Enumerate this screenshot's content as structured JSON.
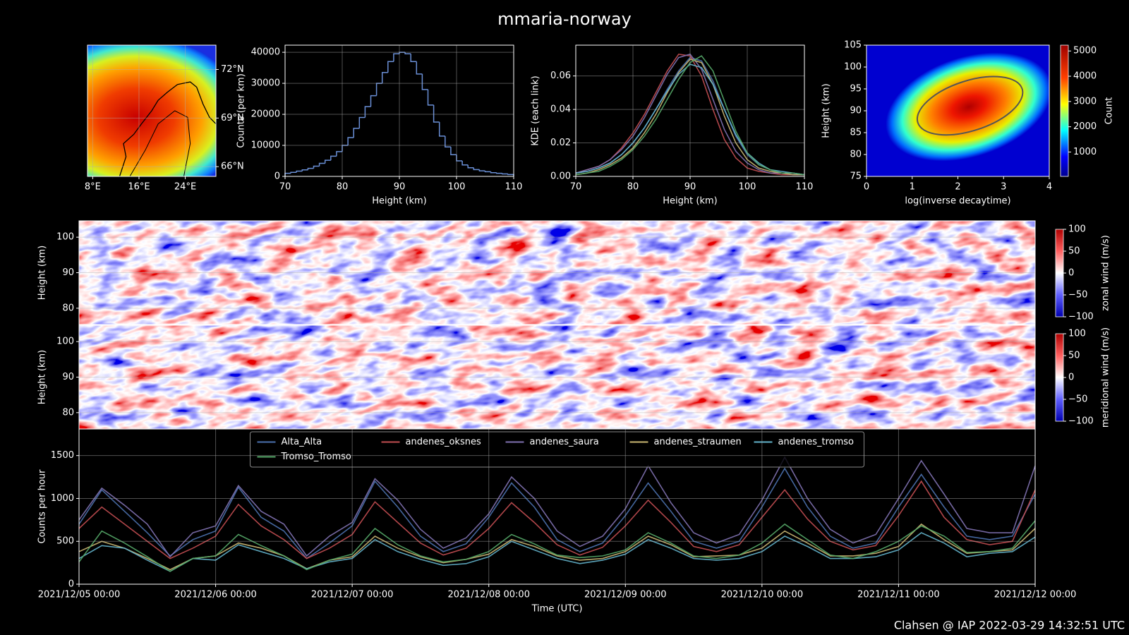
{
  "title": "mmaria-norway",
  "footer": "Clahsen @ IAP 2022-03-29 14:32:51 UTC",
  "chart_data": [
    {
      "type": "map",
      "xlim": [
        7.1,
        29.3
      ],
      "ylim": [
        65.4,
        73.5
      ],
      "xticks": [
        {
          "value": 8,
          "label": "8°E"
        },
        {
          "value": 16,
          "label": "16°E"
        },
        {
          "value": 24,
          "label": "24°E"
        }
      ],
      "yticks": [
        {
          "value": 66,
          "label": "66°N"
        },
        {
          "value": 69,
          "label": "69°N"
        },
        {
          "value": 72,
          "label": "72°N"
        }
      ],
      "grid": true
    },
    {
      "type": "histogram",
      "xlabel": "Height (km)",
      "ylabel": "Counts (per km)",
      "color": "#6a8fd6",
      "bins": [
        70,
        71,
        72,
        73,
        74,
        75,
        76,
        77,
        78,
        79,
        80,
        81,
        82,
        83,
        84,
        85,
        86,
        87,
        88,
        89,
        90,
        91,
        92,
        93,
        94,
        95,
        96,
        97,
        98,
        99,
        100,
        101,
        102,
        103,
        104,
        105,
        106,
        107,
        108,
        109,
        110
      ],
      "values": [
        1000,
        1300,
        1700,
        2100,
        2600,
        3300,
        4200,
        5200,
        6500,
        8000,
        10000,
        12500,
        15500,
        19000,
        22500,
        26000,
        30000,
        33500,
        37000,
        39500,
        40000,
        39500,
        37000,
        33000,
        28000,
        23000,
        17500,
        13000,
        9500,
        7000,
        5000,
        3700,
        2800,
        2200,
        1800,
        1500,
        1200,
        1000,
        800,
        600
      ],
      "xlim": [
        70,
        110
      ],
      "xticks": [
        70,
        80,
        90,
        100,
        110
      ],
      "ylim": [
        0,
        42300
      ],
      "yticks": [
        0,
        10000,
        20000,
        30000,
        40000
      ],
      "grid": true
    },
    {
      "type": "line",
      "xlabel": "Height (km)",
      "ylabel": "KDE (each link)",
      "x": [
        70,
        72,
        74,
        76,
        78,
        80,
        82,
        84,
        86,
        88,
        90,
        92,
        94,
        96,
        98,
        100,
        102,
        104,
        106,
        108,
        110
      ],
      "series": [
        {
          "color": "#4c72b0",
          "values": [
            0.002,
            0.003,
            0.005,
            0.008,
            0.013,
            0.02,
            0.029,
            0.04,
            0.052,
            0.063,
            0.071,
            0.069,
            0.057,
            0.04,
            0.024,
            0.013,
            0.007,
            0.004,
            0.002,
            0.002,
            0.001
          ]
        },
        {
          "color": "#c44e52",
          "values": [
            0.002,
            0.004,
            0.006,
            0.01,
            0.017,
            0.026,
            0.037,
            0.05,
            0.063,
            0.073,
            0.072,
            0.06,
            0.04,
            0.022,
            0.011,
            0.005,
            0.003,
            0.002,
            0.001,
            0.001,
            0.001
          ]
        },
        {
          "color": "#8172b2",
          "values": [
            0.002,
            0.004,
            0.006,
            0.01,
            0.016,
            0.024,
            0.035,
            0.048,
            0.061,
            0.071,
            0.073,
            0.064,
            0.046,
            0.028,
            0.015,
            0.008,
            0.004,
            0.002,
            0.002,
            0.001,
            0.001
          ]
        },
        {
          "color": "#ccb974",
          "values": [
            0.001,
            0.002,
            0.004,
            0.007,
            0.011,
            0.017,
            0.026,
            0.037,
            0.05,
            0.062,
            0.07,
            0.068,
            0.055,
            0.036,
            0.02,
            0.01,
            0.005,
            0.003,
            0.002,
            0.001,
            0.001
          ]
        },
        {
          "color": "#64b5cd",
          "values": [
            0.002,
            0.003,
            0.005,
            0.008,
            0.013,
            0.02,
            0.029,
            0.04,
            0.051,
            0.061,
            0.067,
            0.065,
            0.055,
            0.04,
            0.025,
            0.014,
            0.008,
            0.004,
            0.003,
            0.002,
            0.001
          ]
        },
        {
          "color": "#55a868",
          "values": [
            0.001,
            0.002,
            0.003,
            0.006,
            0.01,
            0.016,
            0.024,
            0.034,
            0.046,
            0.058,
            0.068,
            0.072,
            0.063,
            0.045,
            0.027,
            0.014,
            0.007,
            0.004,
            0.002,
            0.002,
            0.001
          ]
        }
      ],
      "xlim": [
        70,
        110
      ],
      "xticks": [
        70,
        80,
        90,
        100,
        110
      ],
      "ylim": [
        0,
        0.0784
      ],
      "yticks": [
        {
          "value": 0,
          "label": "0.00"
        },
        {
          "value": 0.02,
          "label": "0.02"
        },
        {
          "value": 0.04,
          "label": "0.04"
        },
        {
          "value": 0.06,
          "label": "0.06"
        }
      ],
      "grid": true
    },
    {
      "type": "hist2d",
      "xlabel": "log(inverse decaytime)",
      "ylabel": "Height (km)",
      "cmap": "jet",
      "xlim": [
        0,
        4
      ],
      "xticks": [
        0,
        1,
        2,
        3,
        4
      ],
      "ylim": [
        75,
        105
      ],
      "yticks": [
        75,
        80,
        85,
        90,
        95,
        100,
        105
      ],
      "colorbar": {
        "label": "Count",
        "ylim": [
          35,
          5230
        ],
        "yticks": [
          1000,
          2000,
          3000,
          4000,
          5000
        ]
      }
    },
    {
      "type": "heatmap",
      "ylabel": "Height (km)",
      "cmap": "bwr",
      "grid": true,
      "ylim": [
        75.4,
        104.6
      ],
      "yticks": [
        80,
        90,
        100
      ],
      "colorbar": {
        "label": "zonal wind (m/s)",
        "ylim": [
          -100,
          100
        ],
        "yticks": [
          {
            "value": -100,
            "label": "−100"
          },
          {
            "value": -50,
            "label": "−50"
          },
          0,
          50,
          100
        ]
      }
    },
    {
      "type": "heatmap",
      "ylabel": "Height (km)",
      "cmap": "bwr",
      "grid": true,
      "ylim": [
        75.4,
        104.6
      ],
      "yticks": [
        80,
        90,
        100
      ],
      "colorbar": {
        "label": "meridional wind (m/s)",
        "ylim": [
          -100,
          100
        ],
        "yticks": [
          {
            "value": -100,
            "label": "−100"
          },
          {
            "value": -50,
            "label": "−50"
          },
          0,
          50,
          100
        ]
      }
    },
    {
      "type": "line",
      "xlabel": "Time (UTC)",
      "ylabel": "Counts per hour",
      "legend_loc": "upper center",
      "grid": true,
      "x": [
        "2021/12/05 00:00",
        "2021/12/05 04:00",
        "2021/12/05 08:00",
        "2021/12/05 12:00",
        "2021/12/05 16:00",
        "2021/12/05 20:00",
        "2021/12/06 00:00",
        "2021/12/06 04:00",
        "2021/12/06 08:00",
        "2021/12/06 12:00",
        "2021/12/06 16:00",
        "2021/12/06 20:00",
        "2021/12/07 00:00",
        "2021/12/07 04:00",
        "2021/12/07 08:00",
        "2021/12/07 12:00",
        "2021/12/07 16:00",
        "2021/12/07 20:00",
        "2021/12/08 00:00",
        "2021/12/08 04:00",
        "2021/12/08 08:00",
        "2021/12/08 12:00",
        "2021/12/08 16:00",
        "2021/12/08 20:00",
        "2021/12/09 00:00",
        "2021/12/09 04:00",
        "2021/12/09 08:00",
        "2021/12/09 12:00",
        "2021/12/09 16:00",
        "2021/12/09 20:00",
        "2021/12/10 00:00",
        "2021/12/10 04:00",
        "2021/12/10 08:00",
        "2021/12/10 12:00",
        "2021/12/10 16:00",
        "2021/12/10 20:00",
        "2021/12/11 00:00",
        "2021/12/11 04:00",
        "2021/12/11 08:00",
        "2021/12/11 12:00",
        "2021/12/11 16:00",
        "2021/12/11 20:00",
        "2021/12/12 00:00"
      ],
      "series": [
        {
          "name": "Alta_Alta",
          "color": "#4c72b0",
          "values": [
            700,
            1100,
            850,
            600,
            330,
            520,
            620,
            1130,
            780,
            620,
            300,
            480,
            680,
            1200,
            900,
            560,
            380,
            470,
            780,
            1180,
            900,
            520,
            380,
            480,
            800,
            1180,
            850,
            500,
            420,
            500,
            900,
            1350,
            900,
            560,
            420,
            480,
            900,
            1280,
            900,
            560,
            520,
            560,
            1050
          ]
        },
        {
          "name": "andenes_oksnes",
          "color": "#c44e52",
          "values": [
            650,
            900,
            700,
            500,
            300,
            420,
            560,
            930,
            680,
            520,
            300,
            420,
            580,
            960,
            720,
            480,
            340,
            420,
            650,
            950,
            720,
            460,
            340,
            430,
            680,
            980,
            720,
            440,
            380,
            460,
            780,
            1100,
            760,
            500,
            400,
            450,
            800,
            1200,
            780,
            520,
            460,
            500,
            1100
          ]
        },
        {
          "name": "andenes_saura",
          "color": "#8172b2",
          "values": [
            750,
            1120,
            920,
            700,
            320,
            600,
            680,
            1150,
            850,
            700,
            330,
            560,
            720,
            1230,
            980,
            640,
            420,
            540,
            820,
            1250,
            1000,
            620,
            440,
            560,
            880,
            1380,
            950,
            600,
            480,
            580,
            980,
            1480,
            1000,
            640,
            480,
            580,
            1000,
            1440,
            1050,
            650,
            600,
            600,
            1380
          ]
        },
        {
          "name": "andenes_straumen",
          "color": "#ccb974",
          "values": [
            380,
            500,
            420,
            300,
            170,
            300,
            330,
            480,
            420,
            330,
            180,
            280,
            320,
            560,
            420,
            320,
            250,
            290,
            350,
            520,
            440,
            330,
            280,
            300,
            380,
            560,
            460,
            320,
            330,
            340,
            420,
            620,
            480,
            330,
            330,
            360,
            440,
            700,
            520,
            360,
            380,
            400,
            650
          ]
        },
        {
          "name": "andenes_tromso",
          "color": "#64b5cd",
          "values": [
            300,
            450,
            420,
            280,
            150,
            300,
            280,
            460,
            380,
            300,
            180,
            260,
            300,
            520,
            380,
            290,
            220,
            240,
            320,
            500,
            400,
            300,
            240,
            280,
            350,
            520,
            420,
            300,
            280,
            300,
            380,
            560,
            440,
            300,
            300,
            320,
            400,
            600,
            480,
            320,
            360,
            380,
            550
          ]
        },
        {
          "name": "Tromso_Tromso",
          "color": "#55a868",
          "values": [
            260,
            620,
            480,
            320,
            150,
            300,
            330,
            580,
            450,
            330,
            170,
            280,
            350,
            650,
            460,
            330,
            260,
            290,
            380,
            580,
            470,
            340,
            310,
            330,
            400,
            600,
            480,
            330,
            300,
            340,
            480,
            700,
            520,
            340,
            300,
            380,
            500,
            680,
            560,
            370,
            380,
            420,
            740
          ]
        }
      ],
      "xlim": [
        "2021/12/05 00:00",
        "2021/12/12 00:00"
      ],
      "xticks": [
        "2021/12/05 00:00",
        "2021/12/06 00:00",
        "2021/12/07 00:00",
        "2021/12/08 00:00",
        "2021/12/09 00:00",
        "2021/12/10 00:00",
        "2021/12/11 00:00",
        "2021/12/12 00:00"
      ],
      "ylim": [
        0,
        1810
      ],
      "yticks": [
        0,
        500,
        1000,
        1500
      ]
    }
  ]
}
